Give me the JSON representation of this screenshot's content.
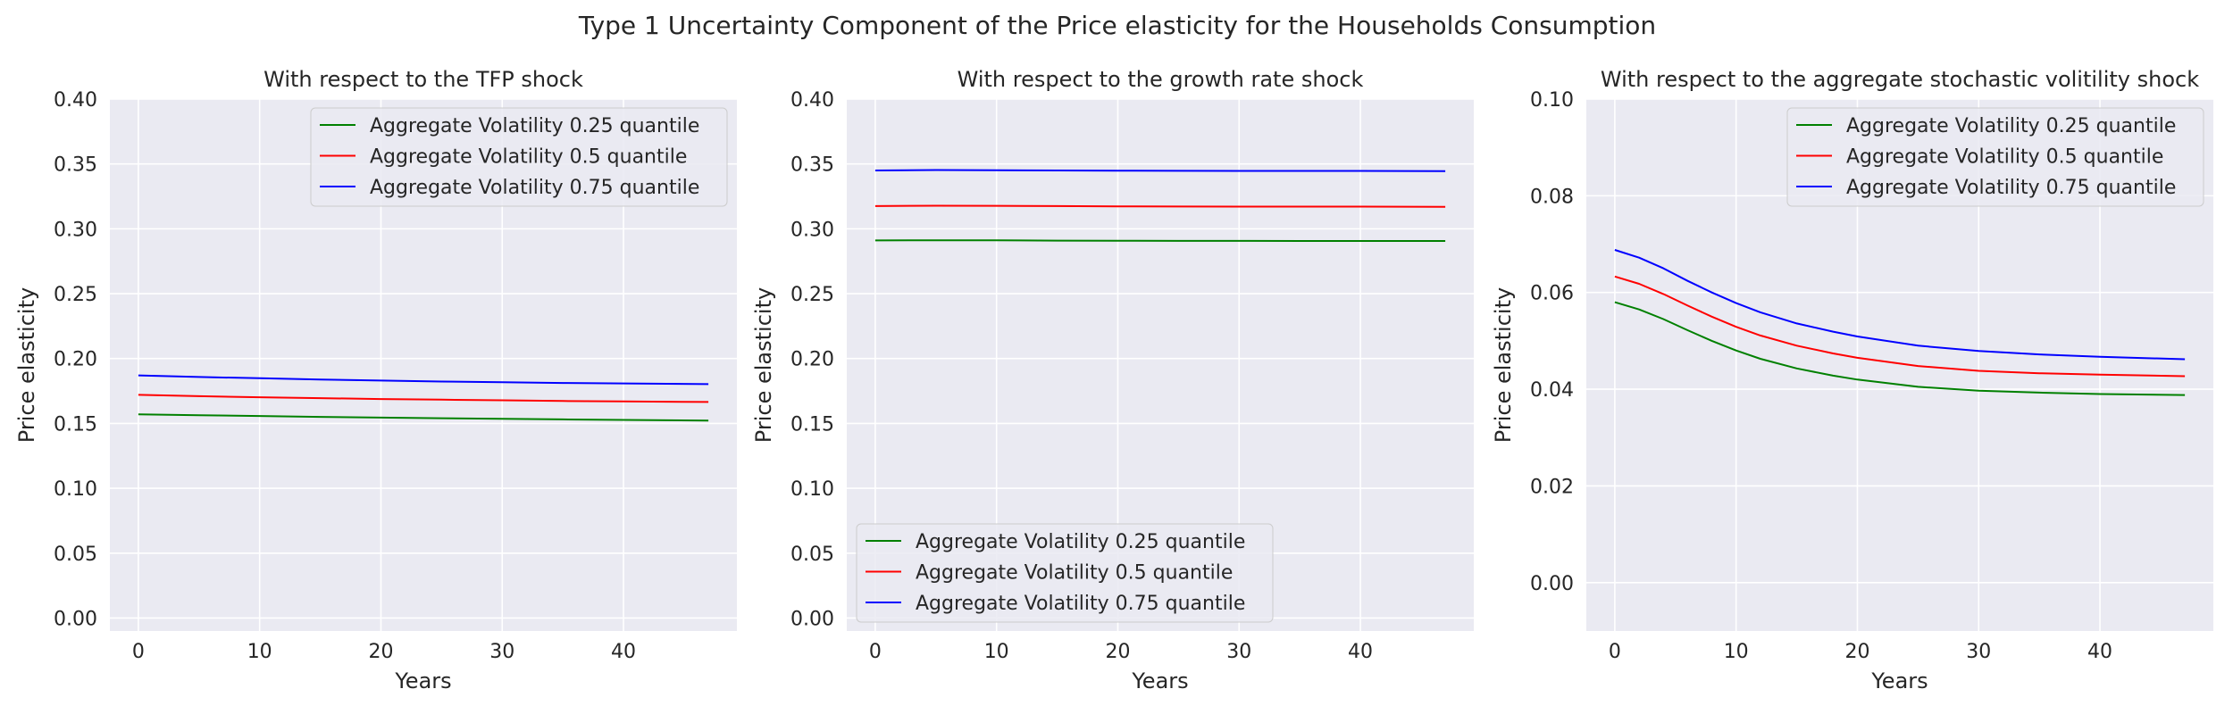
{
  "figure": {
    "title": "Type 1 Uncertainty Component of the Price elasticity for the Households Consumption"
  },
  "chart_data": [
    {
      "type": "line",
      "title": "With respect to the TFP shock",
      "xlabel": "Years",
      "ylabel": "Price elasticity",
      "xlim": [
        -2.35,
        49.35
      ],
      "ylim": [
        -0.01,
        0.4
      ],
      "xticks": [
        0,
        10,
        20,
        30,
        40
      ],
      "xtick_labels": [
        "0",
        "10",
        "20",
        "30",
        "40"
      ],
      "yticks": [
        0.0,
        0.05,
        0.1,
        0.15,
        0.2,
        0.25,
        0.3,
        0.35,
        0.4
      ],
      "ytick_labels": [
        "0.00",
        "0.05",
        "0.10",
        "0.15",
        "0.20",
        "0.25",
        "0.30",
        "0.35",
        "0.40"
      ],
      "grid": true,
      "legend_position": "top-right",
      "x": [
        0,
        5,
        10,
        15,
        20,
        25,
        30,
        35,
        40,
        47
      ],
      "series": [
        {
          "name": "Aggregate Volatility 0.25 quantile",
          "color": "#008000",
          "values": [
            0.157,
            0.1563,
            0.1557,
            0.155,
            0.1545,
            0.154,
            0.1535,
            0.1531,
            0.1527,
            0.1522
          ]
        },
        {
          "name": "Aggregate Volatility 0.5 quantile",
          "color": "#ff0000",
          "values": [
            0.172,
            0.171,
            0.1702,
            0.1695,
            0.1688,
            0.1683,
            0.1678,
            0.1673,
            0.1669,
            0.1665
          ]
        },
        {
          "name": "Aggregate Volatility 0.75 quantile",
          "color": "#0000ff",
          "values": [
            0.187,
            0.1858,
            0.1848,
            0.1838,
            0.183,
            0.1823,
            0.1817,
            0.1812,
            0.1808,
            0.1803
          ]
        }
      ]
    },
    {
      "type": "line",
      "title": "With respect to the growth rate shock",
      "xlabel": "Years",
      "ylabel": "Price elasticity",
      "xlim": [
        -2.35,
        49.35
      ],
      "ylim": [
        -0.01,
        0.4
      ],
      "xticks": [
        0,
        10,
        20,
        30,
        40
      ],
      "xtick_labels": [
        "0",
        "10",
        "20",
        "30",
        "40"
      ],
      "yticks": [
        0.0,
        0.05,
        0.1,
        0.15,
        0.2,
        0.25,
        0.3,
        0.35,
        0.4
      ],
      "ytick_labels": [
        "0.00",
        "0.05",
        "0.10",
        "0.15",
        "0.20",
        "0.25",
        "0.30",
        "0.35",
        "0.40"
      ],
      "grid": true,
      "legend_position": "bottom-left",
      "x": [
        0,
        5,
        10,
        15,
        20,
        25,
        30,
        35,
        40,
        47
      ],
      "series": [
        {
          "name": "Aggregate Volatility 0.25 quantile",
          "color": "#008000",
          "values": [
            0.291,
            0.2912,
            0.2911,
            0.2909,
            0.2908,
            0.2907,
            0.2907,
            0.2906,
            0.2906,
            0.2906
          ]
        },
        {
          "name": "Aggregate Volatility 0.5 quantile",
          "color": "#ff0000",
          "values": [
            0.3175,
            0.3178,
            0.3177,
            0.3175,
            0.3173,
            0.3172,
            0.3171,
            0.3171,
            0.3171,
            0.317
          ]
        },
        {
          "name": "Aggregate Volatility 0.75 quantile",
          "color": "#0000ff",
          "values": [
            0.345,
            0.3453,
            0.3452,
            0.345,
            0.3448,
            0.3447,
            0.3446,
            0.3446,
            0.3446,
            0.3445
          ]
        }
      ]
    },
    {
      "type": "line",
      "title": "With respect to the aggregate stochastic volitility shock",
      "xlabel": "Years",
      "ylabel": "Price elasticity",
      "xlim": [
        -2.35,
        49.35
      ],
      "ylim": [
        -0.01,
        0.1
      ],
      "xticks": [
        0,
        10,
        20,
        30,
        40
      ],
      "xtick_labels": [
        "0",
        "10",
        "20",
        "30",
        "40"
      ],
      "yticks": [
        0.0,
        0.02,
        0.04,
        0.06,
        0.08,
        0.1
      ],
      "ytick_labels": [
        "0.00",
        "0.02",
        "0.04",
        "0.06",
        "0.08",
        "0.10"
      ],
      "grid": true,
      "legend_position": "top-right",
      "x": [
        0,
        2,
        4,
        6,
        8,
        10,
        12,
        15,
        18,
        20,
        25,
        30,
        35,
        40,
        47
      ],
      "series": [
        {
          "name": "Aggregate Volatility 0.25 quantile",
          "color": "#008000",
          "values": [
            0.058,
            0.0565,
            0.0545,
            0.0522,
            0.05,
            0.048,
            0.0463,
            0.0443,
            0.0428,
            0.042,
            0.0405,
            0.0397,
            0.0393,
            0.039,
            0.0388
          ]
        },
        {
          "name": "Aggregate Volatility 0.5 quantile",
          "color": "#ff0000",
          "values": [
            0.0633,
            0.0618,
            0.0597,
            0.0573,
            0.055,
            0.0529,
            0.0511,
            0.049,
            0.0474,
            0.0465,
            0.0448,
            0.0438,
            0.0433,
            0.043,
            0.0427
          ]
        },
        {
          "name": "Aggregate Volatility 0.75 quantile",
          "color": "#0000ff",
          "values": [
            0.0688,
            0.0672,
            0.065,
            0.0624,
            0.06,
            0.0578,
            0.0559,
            0.0536,
            0.0519,
            0.0509,
            0.049,
            0.0479,
            0.0472,
            0.0467,
            0.0462
          ]
        }
      ]
    }
  ]
}
